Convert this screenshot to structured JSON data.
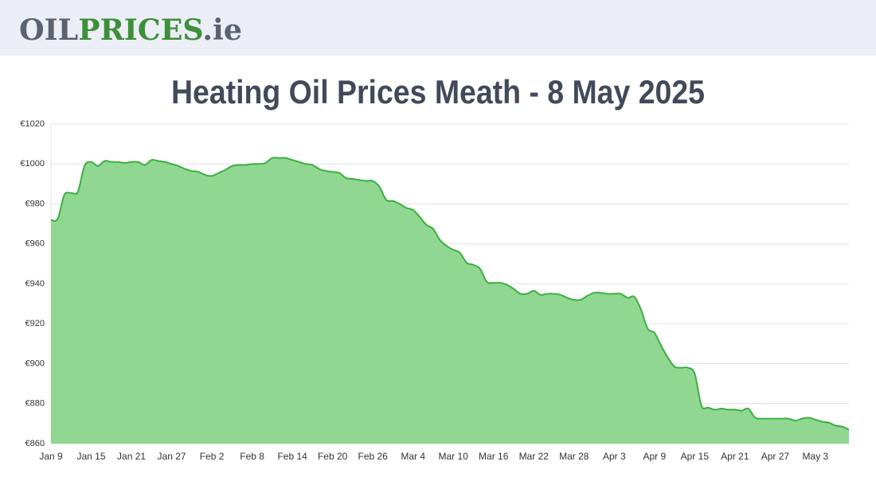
{
  "logo": [
    "OIL",
    "PRICES",
    ".ie"
  ],
  "chart_data": {
    "type": "area",
    "title": "Heating Oil Prices Meath - 8 May 2025",
    "color": "#3cae3f",
    "area_color": "#90d792",
    "grid": true,
    "categories": [
      "Jan 9",
      null,
      null,
      null,
      null,
      null,
      "Jan 15",
      null,
      null,
      null,
      null,
      null,
      "Jan 21",
      null,
      null,
      null,
      null,
      null,
      "Jan 27",
      null,
      null,
      null,
      null,
      null,
      "Feb 2",
      null,
      null,
      null,
      null,
      null,
      "Feb 8",
      null,
      null,
      null,
      null,
      null,
      "Feb 14",
      null,
      null,
      null,
      null,
      null,
      "Feb 20",
      null,
      null,
      null,
      null,
      null,
      "Feb 26",
      null,
      null,
      null,
      null,
      null,
      "Mar 4",
      null,
      null,
      null,
      null,
      null,
      "Mar 10",
      null,
      null,
      null,
      null,
      null,
      "Mar 16",
      null,
      null,
      null,
      null,
      null,
      "Mar 22",
      null,
      null,
      null,
      null,
      null,
      "Mar 28",
      null,
      null,
      null,
      null,
      null,
      "Apr 3",
      null,
      null,
      null,
      null,
      null,
      "Apr 9",
      null,
      null,
      null,
      null,
      null,
      "Apr 15",
      null,
      null,
      null,
      null,
      null,
      "Apr 21",
      null,
      null,
      null,
      null,
      null,
      "Apr 27",
      null,
      null,
      null,
      null,
      null,
      "May 3",
      null,
      null,
      null,
      null,
      null
    ],
    "values": [
      972,
      972.5,
      984.5,
      985.5,
      986,
      999,
      1001,
      999,
      1001.5,
      1001,
      1001,
      1000.5,
      1001,
      1001,
      999.5,
      1002,
      1001.5,
      1001,
      1000,
      999,
      997.5,
      996.5,
      996,
      994.5,
      994,
      995.5,
      997,
      999,
      999.5,
      999.5,
      1000,
      1000,
      1000.5,
      1003,
      1003,
      1003,
      1002,
      1001,
      1000,
      999.5,
      997.5,
      996.5,
      996,
      995.5,
      993,
      992.5,
      992,
      991.5,
      991.5,
      988.5,
      982,
      981.5,
      980,
      978,
      977,
      973.5,
      969.5,
      967.5,
      962,
      959,
      957,
      955.5,
      950.5,
      949.5,
      947.5,
      941,
      940.5,
      940.5,
      939.5,
      937.5,
      935,
      935,
      936.5,
      934.5,
      935,
      935,
      934.5,
      933,
      932,
      932,
      934,
      935.5,
      935.5,
      935,
      935,
      935,
      933,
      933.5,
      927,
      917.5,
      915.5,
      909,
      903,
      898.5,
      898,
      898,
      895,
      879,
      878,
      877,
      877.5,
      877,
      877,
      876.5,
      877.5,
      873,
      872.5,
      872.5,
      872.5,
      872.5,
      872.5,
      871.5,
      872.5,
      873,
      872,
      871,
      870.5,
      869,
      868.5,
      867
    ],
    "ylim": [
      860,
      1020
    ],
    "yticks": [
      {
        "value": 860,
        "label": "€860"
      },
      {
        "value": 880,
        "label": "€880"
      },
      {
        "value": 900,
        "label": "€900"
      },
      {
        "value": 920,
        "label": "€920"
      },
      {
        "value": 940,
        "label": "€940"
      },
      {
        "value": 960,
        "label": "€960"
      },
      {
        "value": 980,
        "label": "€980"
      },
      {
        "value": 1000,
        "label": "€1000"
      },
      {
        "value": 1020,
        "label": "€1020"
      }
    ]
  }
}
